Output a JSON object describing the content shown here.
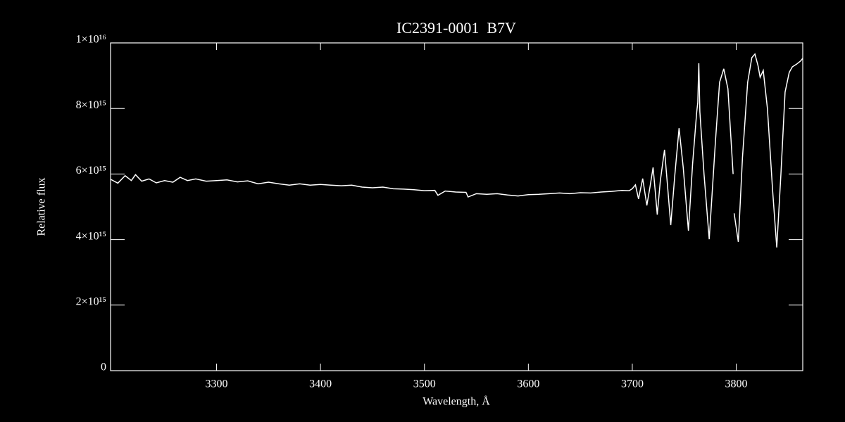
{
  "chart_data": {
    "type": "line",
    "title": "IC2391-0001  B7V",
    "x_label": "Wavelength, Å",
    "y_label": "Relative flux",
    "color": "#ffffff",
    "xlim": [
      3198,
      3864
    ],
    "ylim": [
      0,
      1e+16
    ],
    "xticks": [
      3300,
      3400,
      3500,
      3600,
      3700,
      3800
    ],
    "yticks": [
      0,
      {
        "value": 2000000000000000.0,
        "label": "2×10¹⁵"
      },
      {
        "value": 4000000000000000.0,
        "label": "4×10¹⁵"
      },
      {
        "value": 6000000000000000.0,
        "label": "6×10¹⁵"
      },
      {
        "value": 8000000000000000.0,
        "label": "8×10¹⁵"
      },
      {
        "value": 1e+16,
        "label": "1×10¹⁶"
      }
    ],
    "x": [
      3198,
      3205,
      3212,
      3218,
      3222,
      3228,
      3235,
      3242,
      3250,
      3258,
      3265,
      3272,
      3280,
      3290,
      3300,
      3310,
      3320,
      3330,
      3340,
      3350,
      3360,
      3370,
      3380,
      3390,
      3400,
      3410,
      3420,
      3430,
      3440,
      3450,
      3460,
      3470,
      3480,
      3490,
      3500,
      3510,
      3513,
      3520,
      3530,
      3540,
      3542,
      3550,
      3560,
      3570,
      3580,
      3590,
      3600,
      3610,
      3620,
      3630,
      3640,
      3650,
      3660,
      3670,
      3680,
      3690,
      3697,
      3700,
      3703,
      3706,
      3710,
      3714,
      3717,
      3720,
      3722,
      3724,
      3727,
      3731,
      3734,
      3737,
      3741,
      3745,
      3749,
      3754,
      3758,
      3762,
      3763,
      3764,
      3765,
      3769,
      3774,
      3780,
      3784,
      3788,
      3792,
      3797,
      3797.5,
      3798,
      3802,
      3806,
      3811,
      3815,
      3818,
      3821,
      3823,
      3826,
      3830,
      3835,
      3839,
      3843,
      3847,
      3851,
      3854,
      3858,
      3862,
      3864
    ],
    "values": [
      5840000000000000.0,
      5720000000000000.0,
      5950000000000000.0,
      5800000000000000.0,
      5980000000000000.0,
      5780000000000000.0,
      5850000000000000.0,
      5730000000000000.0,
      5800000000000000.0,
      5750000000000000.0,
      5900000000000000.0,
      5800000000000000.0,
      5850000000000000.0,
      5780000000000000.0,
      5800000000000000.0,
      5820000000000000.0,
      5760000000000000.0,
      5790000000000000.0,
      5700000000000000.0,
      5750000000000000.0,
      5700000000000000.0,
      5660000000000000.0,
      5700000000000000.0,
      5660000000000000.0,
      5680000000000000.0,
      5660000000000000.0,
      5640000000000000.0,
      5660000000000000.0,
      5600000000000000.0,
      5580000000000000.0,
      5600000000000000.0,
      5550000000000000.0,
      5540000000000000.0,
      5520000000000000.0,
      5490000000000000.0,
      5500000000000000.0,
      5350000000000000.0,
      5480000000000000.0,
      5450000000000000.0,
      5440000000000000.0,
      5300000000000000.0,
      5400000000000000.0,
      5380000000000000.0,
      5400000000000000.0,
      5360000000000000.0,
      5330000000000000.0,
      5370000000000000.0,
      5380000000000000.0,
      5400000000000000.0,
      5420000000000000.0,
      5400000000000000.0,
      5430000000000000.0,
      5420000000000000.0,
      5450000000000000.0,
      5470000000000000.0,
      5500000000000000.0,
      5490000000000000.0,
      5550000000000000.0,
      5670000000000000.0,
      5240000000000000.0,
      5860000000000000.0,
      5040000000000000.0,
      5600000000000000.0,
      6200000000000000.0,
      5500000000000000.0,
      4760000000000000.0,
      5800000000000000.0,
      6740000000000000.0,
      5600000000000000.0,
      4440000000000000.0,
      6000000000000000.0,
      7400000000000000.0,
      6200000000000000.0,
      4270000000000000.0,
      6300000000000000.0,
      7900000000000000.0,
      8180000000000000.0,
      9380000000000000.0,
      7900000000000000.0,
      6000000000000000.0,
      4010000000000000.0,
      7000000000000000.0,
      8800000000000000.0,
      9210000000000000.0,
      8600000000000000.0,
      6000000000000000.0,
      null,
      4800000000000000.0,
      3930000000000000.0,
      6500000000000000.0,
      8800000000000000.0,
      9550000000000000.0,
      9660000000000000.0,
      9300000000000000.0,
      8950000000000000.0,
      9160000000000000.0,
      8000000000000000.0,
      5500000000000000.0,
      3760000000000000.0,
      6000000000000000.0,
      8500000000000000.0,
      9100000000000000.0,
      9270000000000000.0,
      9350000000000000.0,
      9450000000000000.0,
      9530000000000000.0
    ]
  }
}
